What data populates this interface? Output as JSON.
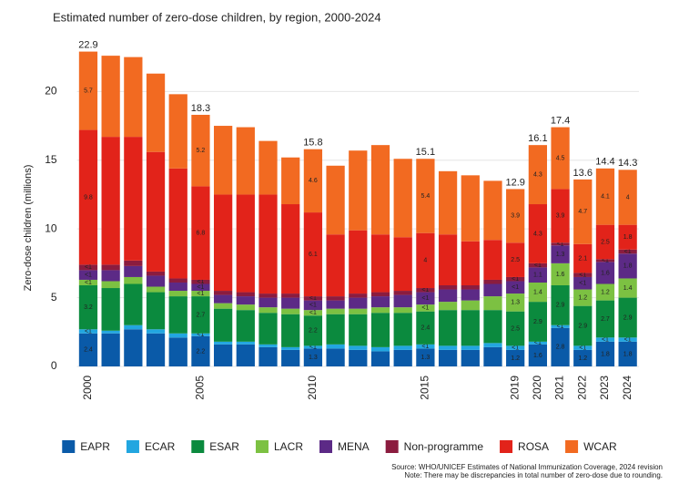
{
  "chart_data": {
    "type": "stacked_bar",
    "title": "Estimated number of zero-dose children, by region, 2000-2024",
    "y_label": "Zero-dose children (millions)",
    "source": "Source: WHO/UNICEF Estimates of National Immunization Coverage, 2024 revision",
    "note": "Note: There may be discrepancies in total number of zero-dose due to rounding.",
    "categories": [
      "2000",
      null,
      null,
      null,
      null,
      "2005",
      null,
      null,
      null,
      null,
      "2010",
      null,
      null,
      null,
      null,
      "2015",
      null,
      null,
      null,
      "2019",
      "2020",
      "2021",
      "2022",
      "2023",
      "2024"
    ],
    "ylim": [
      0,
      24
    ],
    "yticks": [
      0,
      5,
      10,
      15,
      20
    ],
    "grid": true,
    "legend": "bottom",
    "total_labels": [
      22.9,
      null,
      null,
      null,
      null,
      18.3,
      null,
      null,
      null,
      null,
      15.8,
      null,
      null,
      null,
      null,
      15.1,
      null,
      null,
      null,
      12.9,
      16.1,
      17.4,
      13.6,
      14.4,
      14.3
    ],
    "series": [
      {
        "name": "EAPR",
        "color": "#0a5aa8",
        "values": [
          2.4,
          2.4,
          2.7,
          2.4,
          2.1,
          2.2,
          1.6,
          1.6,
          1.4,
          1.2,
          1.3,
          1.3,
          1.2,
          1.1,
          1.2,
          1.3,
          1.2,
          1.2,
          1.4,
          1.2,
          1.6,
          2.8,
          1.2,
          1.8,
          1.8
        ],
        "value_labels": [
          "2.4",
          null,
          null,
          null,
          null,
          "2.2",
          null,
          null,
          null,
          null,
          "1.3",
          null,
          null,
          null,
          null,
          "1.3",
          null,
          null,
          null,
          "1.2",
          "1.6",
          "2.8",
          "1.2",
          "1.8",
          "1.8"
        ]
      },
      {
        "name": "ECAR",
        "color": "#22a6e0",
        "values": [
          0.3,
          0.2,
          0.3,
          0.3,
          0.3,
          0.2,
          0.2,
          0.2,
          0.2,
          0.2,
          0.2,
          0.3,
          0.3,
          0.3,
          0.3,
          0.3,
          0.3,
          0.3,
          0.3,
          0.3,
          0.2,
          0.2,
          0.3,
          0.3,
          0.3
        ],
        "value_labels": [
          "<1",
          null,
          null,
          null,
          null,
          "<1",
          null,
          null,
          null,
          null,
          "<1",
          null,
          null,
          null,
          null,
          "<1",
          null,
          null,
          null,
          "<1",
          "<1",
          "<1",
          "<1",
          "<1",
          "<1"
        ]
      },
      {
        "name": "ESAR",
        "color": "#0b8a3e",
        "values": [
          3.2,
          3.1,
          3.0,
          2.7,
          2.7,
          2.7,
          2.4,
          2.3,
          2.3,
          2.4,
          2.2,
          2.2,
          2.3,
          2.5,
          2.4,
          2.4,
          2.6,
          2.6,
          2.4,
          2.5,
          2.9,
          2.9,
          2.9,
          2.7,
          2.9
        ],
        "value_labels": [
          "3.2",
          null,
          null,
          null,
          null,
          "2.7",
          null,
          null,
          null,
          null,
          "2.2",
          null,
          null,
          null,
          null,
          "2.4",
          null,
          null,
          null,
          "2.5",
          "2.9",
          "2.9",
          "2.9",
          "2.7",
          "2.9"
        ]
      },
      {
        "name": "LACR",
        "color": "#7cc142",
        "values": [
          0.4,
          0.5,
          0.5,
          0.4,
          0.4,
          0.4,
          0.4,
          0.4,
          0.4,
          0.4,
          0.4,
          0.4,
          0.4,
          0.4,
          0.4,
          0.5,
          0.6,
          0.7,
          1.0,
          1.3,
          1.4,
          1.6,
          1.2,
          1.2,
          1.4
        ],
        "value_labels": [
          "<1",
          null,
          null,
          null,
          null,
          "<1",
          null,
          null,
          null,
          null,
          "<1",
          null,
          null,
          null,
          null,
          "<1",
          null,
          null,
          null,
          "1.3",
          "1.4",
          "1.6",
          "1.2",
          "1.2",
          "1.4"
        ]
      },
      {
        "name": "MENA",
        "color": "#5c2a86",
        "values": [
          0.7,
          0.8,
          0.8,
          0.8,
          0.6,
          0.5,
          0.6,
          0.6,
          0.7,
          0.8,
          0.7,
          0.6,
          0.8,
          0.8,
          0.9,
          0.9,
          0.9,
          0.8,
          0.9,
          0.9,
          1.1,
          1.3,
          0.9,
          1.6,
          1.8
        ],
        "value_labels": [
          "<1",
          null,
          null,
          null,
          null,
          "<1",
          null,
          null,
          null,
          null,
          "<1",
          null,
          null,
          null,
          null,
          "<1",
          null,
          null,
          null,
          "<1",
          "1.1",
          "1.3",
          "<1",
          "1.6",
          "1.8"
        ]
      },
      {
        "name": "Non-programme",
        "color": "#8b1c3f",
        "values": [
          0.4,
          0.4,
          0.4,
          0.3,
          0.3,
          0.3,
          0.3,
          0.3,
          0.3,
          0.3,
          0.3,
          0.3,
          0.3,
          0.3,
          0.3,
          0.3,
          0.3,
          0.3,
          0.3,
          0.3,
          0.3,
          0.2,
          0.3,
          0.2,
          0.3
        ],
        "value_labels": [
          "<1",
          null,
          null,
          null,
          null,
          "<1",
          null,
          null,
          null,
          null,
          "<1",
          null,
          null,
          null,
          null,
          "<1",
          null,
          null,
          null,
          "<1",
          "<1",
          "<1",
          "<1",
          "<1",
          "<1"
        ]
      },
      {
        "name": "ROSA",
        "color": "#e2231a",
        "values": [
          9.8,
          9.3,
          9.0,
          8.7,
          8.0,
          6.8,
          7.0,
          7.1,
          7.2,
          6.5,
          6.1,
          4.5,
          4.6,
          4.2,
          3.9,
          4.0,
          3.7,
          3.2,
          2.9,
          2.5,
          4.3,
          3.9,
          2.1,
          2.5,
          1.8
        ],
        "value_labels": [
          "9.8",
          null,
          null,
          null,
          null,
          "6.8",
          null,
          null,
          null,
          null,
          "6.1",
          null,
          null,
          null,
          null,
          "4",
          null,
          null,
          null,
          "2.5",
          "4.3",
          "3.9",
          "2.1",
          "2.5",
          "1.8"
        ]
      },
      {
        "name": "WCAR",
        "color": "#f26a21",
        "values": [
          5.7,
          5.9,
          5.8,
          5.7,
          5.4,
          5.2,
          5.0,
          4.9,
          3.9,
          3.4,
          4.6,
          5.0,
          5.8,
          6.5,
          5.7,
          5.4,
          4.6,
          4.8,
          4.3,
          3.9,
          4.3,
          4.5,
          4.7,
          4.1,
          4.0
        ],
        "value_labels": [
          "5.7",
          null,
          null,
          null,
          null,
          "5.2",
          null,
          null,
          null,
          null,
          "4.6",
          null,
          null,
          null,
          null,
          "5.4",
          null,
          null,
          null,
          "3.9",
          "4.3",
          "4.5",
          "4.7",
          "4.1",
          "4"
        ]
      }
    ]
  }
}
